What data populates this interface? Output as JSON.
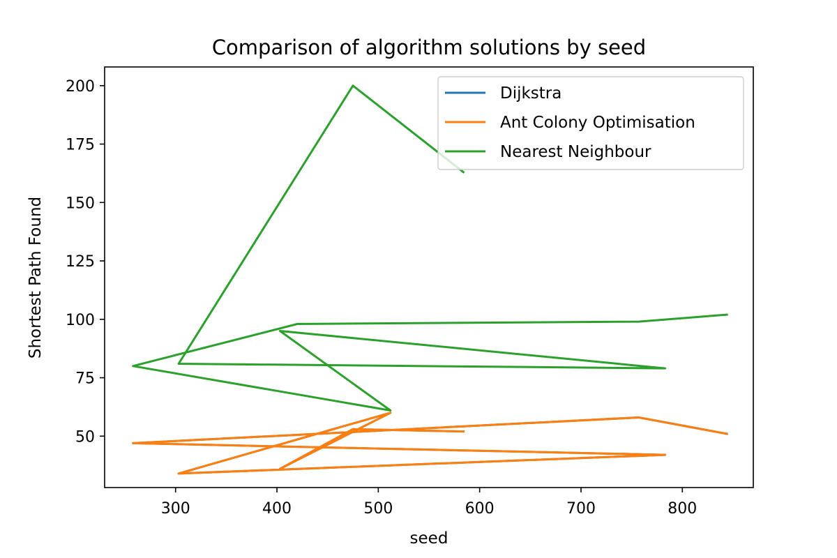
{
  "chart_data": {
    "type": "line",
    "title": "Comparison of algorithm solutions by seed",
    "xlabel": "seed",
    "ylabel": "Shortest Path Found",
    "xlim": [
      230,
      870
    ],
    "ylim": [
      28,
      208
    ],
    "xticks": [
      300,
      400,
      500,
      600,
      700,
      800
    ],
    "yticks": [
      50,
      75,
      100,
      125,
      150,
      175,
      200
    ],
    "grid": false,
    "legend_position": "top-right",
    "series": [
      {
        "name": "Dijkstra",
        "color": "#1f77b4",
        "x": [
          584,
          475,
          403,
          512,
          303,
          783,
          258,
          757,
          844
        ],
        "y": [
          52,
          53,
          36,
          60,
          34,
          42,
          47,
          58,
          51
        ]
      },
      {
        "name": "Ant Colony Optimisation",
        "color": "#ff7f0e",
        "x": [
          584,
          475,
          403,
          512,
          303,
          783,
          258,
          757,
          844
        ],
        "y": [
          52,
          53,
          36,
          60,
          34,
          42,
          47,
          58,
          51
        ]
      },
      {
        "name": "Nearest Neighbour",
        "color": "#2ca02c",
        "x": [
          584,
          475,
          303,
          783,
          403,
          512,
          258,
          420,
          757,
          844
        ],
        "y": [
          163,
          200,
          81,
          79,
          95,
          61,
          80,
          98,
          99,
          102
        ]
      }
    ]
  }
}
